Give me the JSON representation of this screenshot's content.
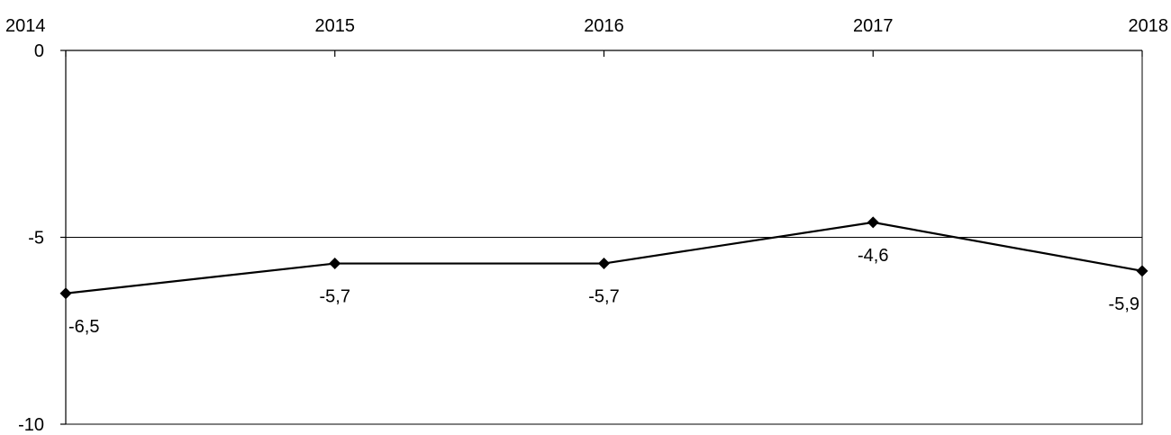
{
  "chart_data": {
    "type": "line",
    "x": [
      "2014",
      "2015",
      "2016",
      "2017",
      "2018"
    ],
    "series": [
      {
        "values": [
          -6.5,
          -5.7,
          -5.7,
          -4.6,
          -5.9
        ]
      }
    ],
    "data_labels": [
      "-6,5",
      "-5,7",
      "-5,7",
      "-4,6",
      "-5,9"
    ],
    "y_ticks": [
      0,
      -5,
      -10
    ],
    "y_tick_labels": [
      "0",
      "-5",
      "-10"
    ],
    "ylim": [
      -10,
      0
    ],
    "x_axis_position": "top",
    "gridlines": [
      -5
    ],
    "marker": "diamond",
    "legend": "none",
    "colors": {
      "line": "#000000",
      "grid": "#000000"
    }
  }
}
